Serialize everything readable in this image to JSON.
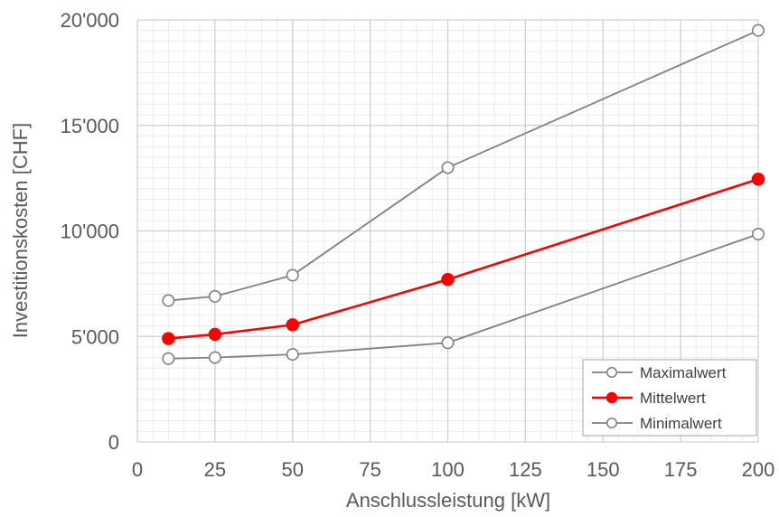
{
  "chart_data": {
    "type": "line",
    "title": "",
    "xlabel": "Anschlussleistung [kW]",
    "ylabel": "Investitionskosten [CHF]",
    "xlim": [
      0,
      200
    ],
    "ylim": [
      0,
      20000
    ],
    "x_ticks": [
      0,
      25,
      50,
      75,
      100,
      125,
      150,
      175,
      200
    ],
    "y_ticks": [
      0,
      5000,
      10000,
      15000,
      20000
    ],
    "x_tick_labels": [
      "0",
      "25",
      "50",
      "75",
      "100",
      "125",
      "150",
      "175",
      "200"
    ],
    "y_tick_labels": [
      "0",
      "5'000",
      "10'000",
      "15'000",
      "20'000"
    ],
    "grid": true,
    "minor_grid": true,
    "legend_position": "bottom-right",
    "x": [
      10,
      25,
      50,
      100,
      200
    ],
    "series": [
      {
        "name": "Maximalwert",
        "color": "#808080",
        "marker": "hollow-circle",
        "values": [
          6700,
          6900,
          7900,
          13000,
          19500
        ]
      },
      {
        "name": "Mittelwert",
        "color": "#ff0000",
        "marker": "filled-circle",
        "values": [
          4900,
          5100,
          5550,
          7700,
          12450
        ]
      },
      {
        "name": "Minimalwert",
        "color": "#808080",
        "marker": "hollow-circle",
        "values": [
          3950,
          4000,
          4150,
          4700,
          9850
        ]
      }
    ]
  }
}
